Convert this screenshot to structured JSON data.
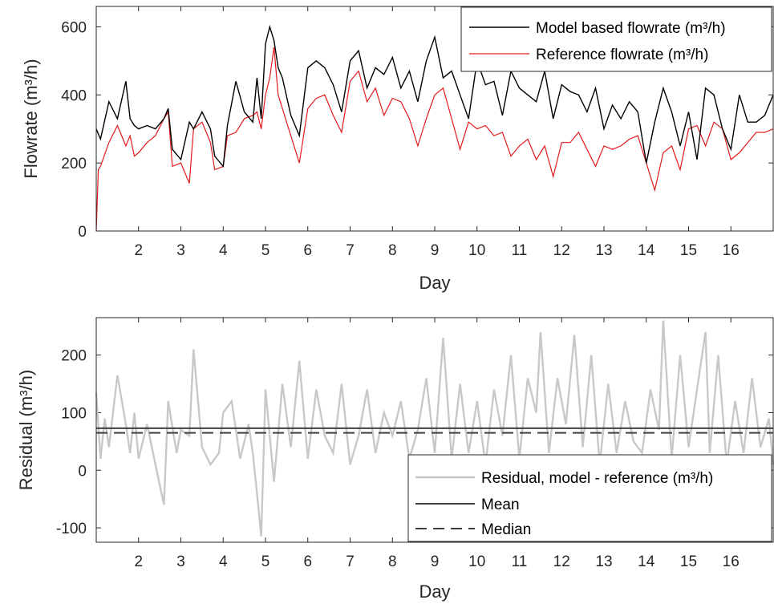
{
  "chart_data": [
    {
      "type": "line",
      "xlabel": "Day",
      "ylabel": "Flowrate (m³/h)",
      "xlim": [
        1,
        17
      ],
      "ylim": [
        0,
        660
      ],
      "xticks": [
        "2",
        "3",
        "4",
        "5",
        "6",
        "7",
        "8",
        "9",
        "10",
        "11",
        "12",
        "13",
        "14",
        "15",
        "16"
      ],
      "yticks": [
        "0",
        "200",
        "400",
        "600"
      ],
      "legend_position": "top-right",
      "series": [
        {
          "name": "Model based flowrate (m³/h)",
          "color": "#000000",
          "x": [
            1.0,
            1.1,
            1.3,
            1.5,
            1.7,
            1.8,
            1.9,
            2.0,
            2.2,
            2.4,
            2.6,
            2.7,
            2.8,
            3.0,
            3.2,
            3.3,
            3.5,
            3.7,
            3.8,
            4.0,
            4.1,
            4.3,
            4.5,
            4.7,
            4.8,
            4.9,
            5.0,
            5.1,
            5.2,
            5.3,
            5.4,
            5.6,
            5.8,
            6.0,
            6.2,
            6.4,
            6.6,
            6.8,
            7.0,
            7.2,
            7.4,
            7.6,
            7.8,
            8.0,
            8.2,
            8.4,
            8.6,
            8.8,
            9.0,
            9.2,
            9.4,
            9.6,
            9.8,
            10.0,
            10.2,
            10.4,
            10.6,
            10.8,
            11.0,
            11.2,
            11.4,
            11.6,
            11.8,
            12.0,
            12.2,
            12.4,
            12.6,
            12.8,
            13.0,
            13.2,
            13.4,
            13.6,
            13.8,
            14.0,
            14.2,
            14.4,
            14.6,
            14.8,
            15.0,
            15.2,
            15.4,
            15.6,
            15.8,
            16.0,
            16.2,
            16.4,
            16.6,
            16.8,
            17.0
          ],
          "values": [
            300,
            270,
            380,
            330,
            440,
            330,
            310,
            300,
            310,
            300,
            330,
            360,
            240,
            210,
            320,
            300,
            350,
            300,
            220,
            190,
            310,
            440,
            350,
            320,
            450,
            330,
            550,
            600,
            560,
            480,
            450,
            340,
            280,
            480,
            500,
            480,
            430,
            350,
            500,
            530,
            420,
            480,
            460,
            510,
            420,
            470,
            380,
            500,
            570,
            450,
            470,
            400,
            330,
            500,
            430,
            440,
            340,
            470,
            420,
            400,
            380,
            470,
            330,
            430,
            410,
            400,
            350,
            420,
            300,
            370,
            330,
            380,
            350,
            200,
            320,
            420,
            350,
            250,
            350,
            210,
            420,
            400,
            300,
            240,
            400,
            320,
            320,
            340,
            400
          ]
        },
        {
          "name": "Reference flowrate (m³/h)",
          "color": "#e31a1c",
          "x": [
            1.0,
            1.05,
            1.1,
            1.3,
            1.5,
            1.7,
            1.8,
            1.9,
            2.0,
            2.2,
            2.4,
            2.6,
            2.7,
            2.8,
            3.0,
            3.2,
            3.3,
            3.5,
            3.7,
            3.8,
            4.0,
            4.1,
            4.3,
            4.5,
            4.7,
            4.8,
            4.9,
            5.0,
            5.1,
            5.2,
            5.3,
            5.4,
            5.6,
            5.8,
            6.0,
            6.2,
            6.4,
            6.6,
            6.8,
            7.0,
            7.2,
            7.4,
            7.6,
            7.8,
            8.0,
            8.2,
            8.4,
            8.6,
            8.8,
            9.0,
            9.2,
            9.4,
            9.6,
            9.8,
            10.0,
            10.2,
            10.4,
            10.6,
            10.8,
            11.0,
            11.2,
            11.4,
            11.6,
            11.8,
            12.0,
            12.2,
            12.4,
            12.6,
            12.8,
            13.0,
            13.2,
            13.4,
            13.6,
            13.8,
            14.0,
            14.2,
            14.4,
            14.6,
            14.8,
            15.0,
            15.2,
            15.4,
            15.6,
            15.8,
            16.0,
            16.2,
            16.4,
            16.6,
            16.8,
            17.0
          ],
          "values": [
            0,
            180,
            190,
            260,
            310,
            250,
            280,
            220,
            230,
            260,
            280,
            330,
            350,
            190,
            200,
            140,
            300,
            320,
            260,
            180,
            190,
            280,
            290,
            330,
            340,
            350,
            300,
            400,
            450,
            540,
            400,
            360,
            280,
            200,
            360,
            390,
            400,
            340,
            290,
            440,
            470,
            380,
            420,
            340,
            390,
            380,
            330,
            250,
            330,
            400,
            420,
            330,
            240,
            320,
            300,
            310,
            280,
            290,
            220,
            250,
            270,
            210,
            250,
            160,
            260,
            260,
            290,
            240,
            190,
            250,
            240,
            250,
            270,
            280,
            200,
            120,
            230,
            250,
            180,
            300,
            310,
            250,
            320,
            300,
            210,
            230,
            260,
            290,
            290,
            300
          ]
        }
      ]
    },
    {
      "type": "line",
      "xlabel": "Day",
      "ylabel": "Residual (m³/h)",
      "xlim": [
        1,
        17
      ],
      "ylim": [
        -125,
        265
      ],
      "xticks": [
        "2",
        "3",
        "4",
        "5",
        "6",
        "7",
        "8",
        "9",
        "10",
        "11",
        "12",
        "13",
        "14",
        "15",
        "16"
      ],
      "yticks": [
        "-100",
        "0",
        "100",
        "200"
      ],
      "legend_position": "bottom-right",
      "series": [
        {
          "name": "Residual, model - reference (m³/h)",
          "color": "#c8c8c8",
          "x": [
            1.0,
            1.1,
            1.2,
            1.3,
            1.5,
            1.7,
            1.8,
            1.9,
            2.0,
            2.2,
            2.4,
            2.6,
            2.7,
            2.9,
            3.0,
            3.2,
            3.3,
            3.5,
            3.7,
            3.9,
            4.0,
            4.2,
            4.4,
            4.6,
            4.7,
            4.8,
            4.9,
            5.0,
            5.2,
            5.4,
            5.6,
            5.8,
            6.0,
            6.2,
            6.4,
            6.6,
            6.8,
            7.0,
            7.2,
            7.4,
            7.6,
            7.8,
            8.0,
            8.2,
            8.4,
            8.6,
            8.8,
            9.0,
            9.2,
            9.4,
            9.6,
            9.8,
            10.0,
            10.2,
            10.4,
            10.6,
            10.8,
            11.0,
            11.2,
            11.4,
            11.5,
            11.7,
            11.9,
            12.1,
            12.3,
            12.5,
            12.7,
            12.9,
            13.1,
            13.3,
            13.5,
            13.7,
            13.9,
            14.1,
            14.3,
            14.4,
            14.6,
            14.8,
            15.0,
            15.2,
            15.4,
            15.5,
            15.7,
            15.9,
            16.1,
            16.3,
            16.5,
            16.7,
            16.9,
            17.0
          ],
          "values": [
            135,
            20,
            90,
            40,
            165,
            80,
            30,
            100,
            20,
            80,
            10,
            -60,
            120,
            30,
            70,
            60,
            210,
            40,
            10,
            30,
            100,
            120,
            20,
            80,
            30,
            -40,
            -115,
            140,
            -20,
            150,
            40,
            190,
            20,
            140,
            60,
            30,
            150,
            10,
            60,
            140,
            30,
            100,
            60,
            120,
            20,
            70,
            160,
            30,
            230,
            20,
            150,
            30,
            120,
            10,
            140,
            60,
            200,
            20,
            160,
            100,
            240,
            30,
            160,
            80,
            235,
            40,
            200,
            10,
            150,
            30,
            120,
            50,
            30,
            140,
            70,
            260,
            20,
            200,
            40,
            140,
            240,
            30,
            200,
            10,
            120,
            30,
            160,
            40,
            90,
            10
          ]
        },
        {
          "name": "Mean",
          "color": "#404040",
          "value": 73
        },
        {
          "name": "Median",
          "color": "#404040",
          "value": 65
        }
      ]
    }
  ]
}
